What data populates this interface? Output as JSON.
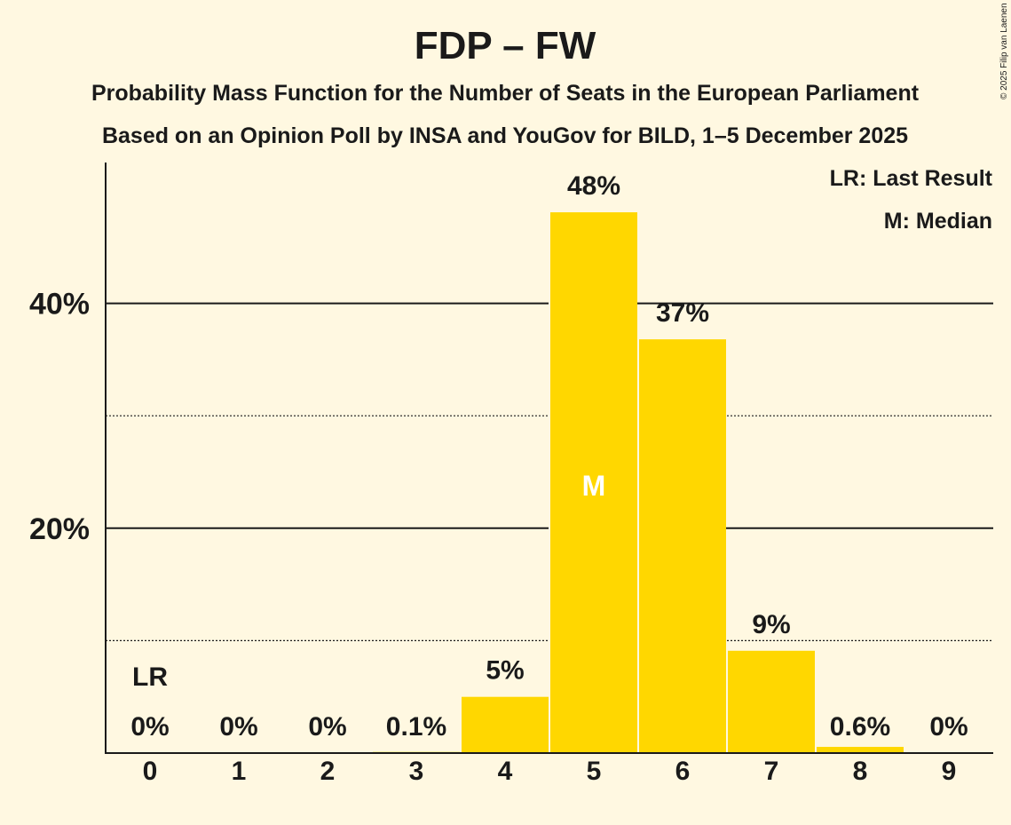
{
  "chart_data": {
    "type": "bar",
    "title": "FDP – FW",
    "subtitle1": "Probability Mass Function for the Number of Seats in the European Parliament",
    "subtitle2": "Based on an Opinion Poll by INSA and YouGov for BILD, 1–5 December 2025",
    "categories": [
      "0",
      "1",
      "2",
      "3",
      "4",
      "5",
      "6",
      "7",
      "8",
      "9"
    ],
    "values": [
      0,
      0,
      0,
      0.1,
      5.0,
      48.1,
      36.8,
      9.1,
      0.55,
      0
    ],
    "value_labels": [
      "0%",
      "0%",
      "0%",
      "0.1%",
      "5%",
      "48%",
      "37%",
      "9%",
      "0.6%",
      "0%"
    ],
    "ylim": [
      0,
      52
    ],
    "major_ticks": [
      {
        "value": 20,
        "label": "20%"
      },
      {
        "value": 40,
        "label": "40%"
      }
    ],
    "minor_ticks": [
      10,
      30
    ],
    "last_result_index": 0,
    "last_result_label": "LR",
    "median_index": 5,
    "median_label": "M",
    "legend": [
      "LR: Last Result",
      "M: Median"
    ],
    "legend_position": "top-right",
    "bar_color": "#ffd700",
    "copyright": "© 2025 Filip van Laenen"
  }
}
